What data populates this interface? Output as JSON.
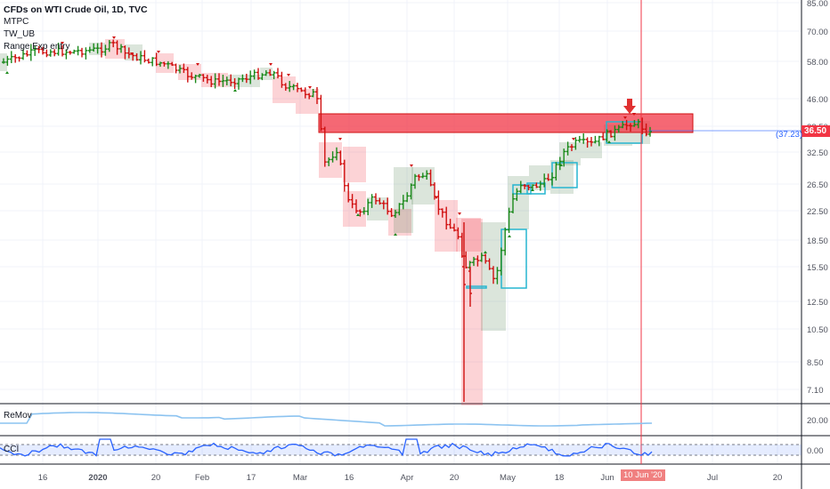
{
  "legend": {
    "symbol": "CFDs on WTI Crude Oil, 1D, TVC",
    "studies": [
      "MTPC",
      "TW_UB",
      "Range Exp entry"
    ]
  },
  "price_axis": {
    "labels": [
      "85.00",
      "70.00",
      "58.00",
      "46.00",
      "38.50",
      "32.50",
      "26.50",
      "22.50",
      "18.50",
      "15.50",
      "12.50",
      "10.50",
      "8.50",
      "7.10"
    ],
    "last_price": "36.50",
    "ref_price": "(37.23)",
    "last_color": "#f23645"
  },
  "time_axis": {
    "labels": [
      "16",
      "2020",
      "20",
      "Feb",
      "17",
      "Mar",
      "16",
      "Apr",
      "20",
      "May",
      "18",
      "Jun",
      "Jul",
      "20"
    ],
    "cursor_label": "10 Jun '20"
  },
  "panes": {
    "remov": {
      "label": "ReMov",
      "axis_label": "20.00"
    },
    "cci": {
      "label": "CCI",
      "axis_label": "0.00"
    }
  },
  "colors": {
    "up": "#1b8a1b",
    "down": "#d01010",
    "zone_red": "#f23645",
    "box_cyan": "#26b5d0",
    "remov_line": "#8cc3f0",
    "cci_line": "#2962ff"
  },
  "icons": [
    "down-arrow-icon"
  ]
}
